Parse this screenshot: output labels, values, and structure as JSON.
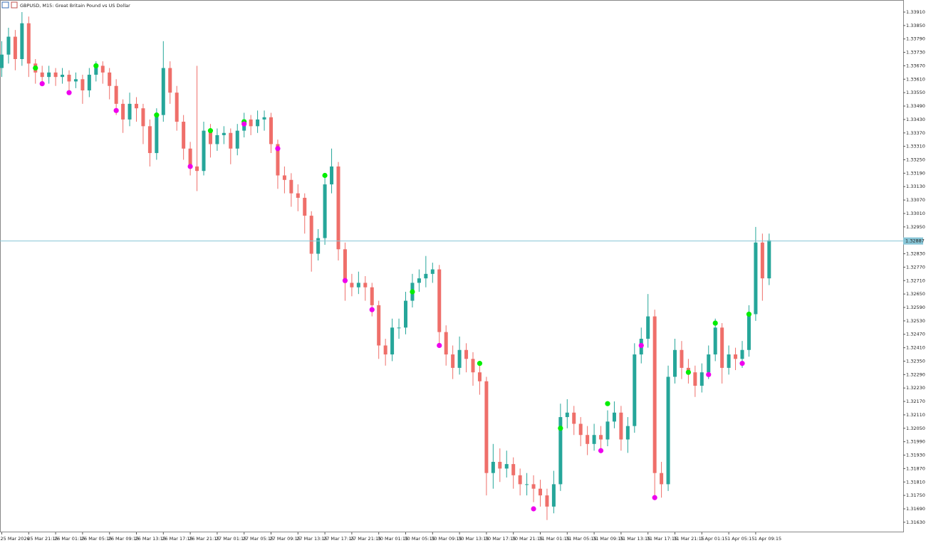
{
  "chart_data": {
    "type": "candlestick",
    "title": "GBPUSD, M15:  Great Britain Pound vs US Dollar",
    "up_color": "#26a69a",
    "down_color": "#ef6f6a",
    "grid": false,
    "ylim": [
      1.31585,
      1.33964
    ],
    "yticks": [
      {
        "value": 1.3391,
        "label": "1.33910"
      },
      {
        "value": 1.3385,
        "label": "1.33850"
      },
      {
        "value": 1.3379,
        "label": "1.33790"
      },
      {
        "value": 1.3373,
        "label": "1.33730"
      },
      {
        "value": 1.3367,
        "label": "1.33670"
      },
      {
        "value": 1.3361,
        "label": "1.33610"
      },
      {
        "value": 1.3355,
        "label": "1.33550"
      },
      {
        "value": 1.3349,
        "label": "1.33490"
      },
      {
        "value": 1.3343,
        "label": "1.33430"
      },
      {
        "value": 1.3337,
        "label": "1.33370"
      },
      {
        "value": 1.3331,
        "label": "1.33310"
      },
      {
        "value": 1.3325,
        "label": "1.33250"
      },
      {
        "value": 1.3319,
        "label": "1.33190"
      },
      {
        "value": 1.3313,
        "label": "1.33130"
      },
      {
        "value": 1.3307,
        "label": "1.33070"
      },
      {
        "value": 1.3301,
        "label": "1.33010"
      },
      {
        "value": 1.3295,
        "label": "1.32950"
      },
      {
        "value": 1.3283,
        "label": "1.32830"
      },
      {
        "value": 1.3277,
        "label": "1.32770"
      },
      {
        "value": 1.3271,
        "label": "1.32710"
      },
      {
        "value": 1.3265,
        "label": "1.32650"
      },
      {
        "value": 1.3259,
        "label": "1.32590"
      },
      {
        "value": 1.3253,
        "label": "1.32530"
      },
      {
        "value": 1.3247,
        "label": "1.32470"
      },
      {
        "value": 1.3241,
        "label": "1.32410"
      },
      {
        "value": 1.3235,
        "label": "1.32350"
      },
      {
        "value": 1.3229,
        "label": "1.32290"
      },
      {
        "value": 1.3223,
        "label": "1.32230"
      },
      {
        "value": 1.3217,
        "label": "1.32170"
      },
      {
        "value": 1.3211,
        "label": "1.32110"
      },
      {
        "value": 1.3205,
        "label": "1.32050"
      },
      {
        "value": 1.3199,
        "label": "1.31990"
      },
      {
        "value": 1.3193,
        "label": "1.31930"
      },
      {
        "value": 1.3187,
        "label": "1.31870"
      },
      {
        "value": 1.3181,
        "label": "1.31810"
      },
      {
        "value": 1.3175,
        "label": "1.31750"
      },
      {
        "value": 1.3169,
        "label": "1.31690"
      },
      {
        "value": 1.3163,
        "label": "1.31630"
      }
    ],
    "current_price": {
      "value": 1.32887,
      "label": "1.32887",
      "color": "#87c5d6"
    },
    "categories": [
      "25 Mar 2026",
      null,
      null,
      null,
      "25 Mar 21:15",
      null,
      null,
      null,
      "26 Mar 01:15",
      null,
      null,
      null,
      "26 Mar 05:15",
      null,
      null,
      null,
      "26 Mar 09:15",
      null,
      null,
      null,
      "26 Mar 13:15",
      null,
      null,
      null,
      "26 Mar 17:15",
      null,
      null,
      null,
      "26 Mar 21:15",
      null,
      null,
      null,
      "27 Mar 01:15",
      null,
      null,
      null,
      "27 Mar 05:15",
      null,
      null,
      null,
      "27 Mar 09:15",
      null,
      null,
      null,
      "27 Mar 13:15",
      null,
      null,
      null,
      "27 Mar 17:15",
      null,
      null,
      null,
      "27 Mar 21:15",
      null,
      null,
      null,
      "30 Mar 01:15",
      null,
      null,
      null,
      "30 Mar 05:15",
      null,
      null,
      null,
      "30 Mar 09:15",
      null,
      null,
      null,
      "30 Mar 13:15",
      null,
      null,
      null,
      "30 Mar 17:15",
      null,
      null,
      null,
      "30 Mar 21:15",
      null,
      null,
      null,
      "31 Mar 01:15",
      null,
      null,
      null,
      "31 Mar 05:15",
      null,
      null,
      null,
      "31 Mar 09:15",
      null,
      null,
      null,
      "31 Mar 13:15",
      null,
      null,
      null,
      "31 Mar 17:15",
      null,
      null,
      null,
      "31 Mar 21:15",
      null,
      null,
      null,
      "1 Apr 01:15",
      null,
      null,
      null,
      "1 Apr 05:15",
      null,
      null,
      null,
      "1 Apr 09:15",
      null,
      null
    ],
    "ohlc": [
      [
        1.3366,
        1.3378,
        1.3362,
        1.3372
      ],
      [
        1.3372,
        1.3384,
        1.3368,
        1.338
      ],
      [
        1.338,
        1.3383,
        1.3365,
        1.337
      ],
      [
        1.337,
        1.3391,
        1.3367,
        1.3386
      ],
      [
        1.3386,
        1.3389,
        1.3362,
        1.3368
      ],
      [
        1.3368,
        1.337,
        1.3359,
        1.3364
      ],
      [
        1.3364,
        1.3367,
        1.3358,
        1.3362
      ],
      [
        1.3362,
        1.3367,
        1.3359,
        1.3364
      ],
      [
        1.3364,
        1.3366,
        1.3358,
        1.3362
      ],
      [
        1.3362,
        1.3366,
        1.3359,
        1.3363
      ],
      [
        1.3363,
        1.3365,
        1.3355,
        1.336
      ],
      [
        1.336,
        1.3364,
        1.3357,
        1.3361
      ],
      [
        1.3361,
        1.3363,
        1.335,
        1.3356
      ],
      [
        1.3356,
        1.3366,
        1.3353,
        1.3363
      ],
      [
        1.3363,
        1.3369,
        1.336,
        1.3367
      ],
      [
        1.3367,
        1.3369,
        1.3359,
        1.3364
      ],
      [
        1.3364,
        1.3366,
        1.3352,
        1.3358
      ],
      [
        1.3358,
        1.3361,
        1.3345,
        1.335
      ],
      [
        1.335,
        1.3352,
        1.3337,
        1.3343
      ],
      [
        1.3343,
        1.3355,
        1.334,
        1.335
      ],
      [
        1.335,
        1.3353,
        1.3342,
        1.3348
      ],
      [
        1.3348,
        1.335,
        1.3332,
        1.334
      ],
      [
        1.334,
        1.3343,
        1.3322,
        1.3328
      ],
      [
        1.3328,
        1.3348,
        1.3325,
        1.3345
      ],
      [
        1.3345,
        1.3378,
        1.3342,
        1.3366
      ],
      [
        1.3366,
        1.3369,
        1.335,
        1.3355
      ],
      [
        1.3355,
        1.3358,
        1.3338,
        1.3342
      ],
      [
        1.3342,
        1.3345,
        1.3325,
        1.333
      ],
      [
        1.333,
        1.3333,
        1.3318,
        1.3322
      ],
      [
        1.3322,
        1.3367,
        1.3311,
        1.332
      ],
      [
        1.332,
        1.3342,
        1.3318,
        1.3338
      ],
      [
        1.3338,
        1.3341,
        1.3326,
        1.3332
      ],
      [
        1.3332,
        1.3339,
        1.3329,
        1.3336
      ],
      [
        1.3336,
        1.334,
        1.3332,
        1.3337
      ],
      [
        1.3337,
        1.3339,
        1.3323,
        1.333
      ],
      [
        1.333,
        1.3341,
        1.3327,
        1.3338
      ],
      [
        1.3338,
        1.3346,
        1.3335,
        1.3343
      ],
      [
        1.3343,
        1.3345,
        1.3336,
        1.334
      ],
      [
        1.334,
        1.3347,
        1.3337,
        1.3343
      ],
      [
        1.3343,
        1.3347,
        1.3338,
        1.3344
      ],
      [
        1.3344,
        1.3346,
        1.3328,
        1.3332
      ],
      [
        1.3332,
        1.3334,
        1.3312,
        1.3318
      ],
      [
        1.3318,
        1.3322,
        1.331,
        1.3316
      ],
      [
        1.3316,
        1.3319,
        1.3304,
        1.331
      ],
      [
        1.331,
        1.3314,
        1.3302,
        1.3308
      ],
      [
        1.3308,
        1.331,
        1.3292,
        1.33
      ],
      [
        1.33,
        1.3302,
        1.3275,
        1.3283
      ],
      [
        1.3283,
        1.3294,
        1.328,
        1.329
      ],
      [
        1.329,
        1.3318,
        1.3287,
        1.3314
      ],
      [
        1.3314,
        1.333,
        1.331,
        1.3322
      ],
      [
        1.3322,
        1.3324,
        1.328,
        1.3285
      ],
      [
        1.3285,
        1.3288,
        1.3262,
        1.327
      ],
      [
        1.327,
        1.3274,
        1.3264,
        1.3268
      ],
      [
        1.3268,
        1.3275,
        1.3265,
        1.327
      ],
      [
        1.327,
        1.3273,
        1.3262,
        1.3268
      ],
      [
        1.3268,
        1.327,
        1.3255,
        1.326
      ],
      [
        1.326,
        1.3262,
        1.3236,
        1.3242
      ],
      [
        1.3242,
        1.3245,
        1.3233,
        1.3238
      ],
      [
        1.3238,
        1.3254,
        1.3235,
        1.325
      ],
      [
        1.325,
        1.3254,
        1.3245,
        1.325
      ],
      [
        1.325,
        1.3266,
        1.3247,
        1.3262
      ],
      [
        1.3262,
        1.3274,
        1.3259,
        1.327
      ],
      [
        1.327,
        1.3276,
        1.3266,
        1.3272
      ],
      [
        1.3272,
        1.3282,
        1.3268,
        1.3274
      ],
      [
        1.3274,
        1.3279,
        1.327,
        1.3276
      ],
      [
        1.3276,
        1.3278,
        1.3243,
        1.3248
      ],
      [
        1.3248,
        1.3251,
        1.3233,
        1.3238
      ],
      [
        1.3238,
        1.3242,
        1.3227,
        1.3232
      ],
      [
        1.3232,
        1.3246,
        1.3229,
        1.324
      ],
      [
        1.324,
        1.3243,
        1.323,
        1.3236
      ],
      [
        1.3236,
        1.3239,
        1.3224,
        1.323
      ],
      [
        1.323,
        1.3233,
        1.322,
        1.3226
      ],
      [
        1.3226,
        1.3228,
        1.3175,
        1.3185
      ],
      [
        1.3185,
        1.3198,
        1.3178,
        1.319
      ],
      [
        1.319,
        1.3196,
        1.3181,
        1.3187
      ],
      [
        1.3187,
        1.3195,
        1.3183,
        1.3189
      ],
      [
        1.3189,
        1.3192,
        1.3178,
        1.3184
      ],
      [
        1.3184,
        1.3187,
        1.3175,
        1.318
      ],
      [
        1.318,
        1.3185,
        1.3175,
        1.318
      ],
      [
        1.318,
        1.3184,
        1.3172,
        1.3178
      ],
      [
        1.3178,
        1.3182,
        1.317,
        1.3175
      ],
      [
        1.3175,
        1.3178,
        1.3164,
        1.317
      ],
      [
        1.317,
        1.3186,
        1.3167,
        1.318
      ],
      [
        1.318,
        1.3216,
        1.3177,
        1.321
      ],
      [
        1.321,
        1.3218,
        1.3205,
        1.3212
      ],
      [
        1.3212,
        1.3215,
        1.3202,
        1.3207
      ],
      [
        1.3207,
        1.321,
        1.3197,
        1.3202
      ],
      [
        1.3202,
        1.3206,
        1.3193,
        1.3198
      ],
      [
        1.3198,
        1.3207,
        1.3195,
        1.3202
      ],
      [
        1.3202,
        1.3206,
        1.3195,
        1.32
      ],
      [
        1.32,
        1.3213,
        1.3197,
        1.3208
      ],
      [
        1.3208,
        1.3217,
        1.3205,
        1.3212
      ],
      [
        1.3212,
        1.3215,
        1.3195,
        1.32
      ],
      [
        1.32,
        1.321,
        1.3194,
        1.3206
      ],
      [
        1.3206,
        1.3243,
        1.3203,
        1.3238
      ],
      [
        1.3238,
        1.325,
        1.3234,
        1.3245
      ],
      [
        1.3245,
        1.3265,
        1.3241,
        1.3255
      ],
      [
        1.3255,
        1.3258,
        1.3175,
        1.3185
      ],
      [
        1.3185,
        1.319,
        1.3174,
        1.318
      ],
      [
        1.318,
        1.3233,
        1.3177,
        1.3228
      ],
      [
        1.3228,
        1.3245,
        1.3225,
        1.324
      ],
      [
        1.324,
        1.3244,
        1.3227,
        1.3232
      ],
      [
        1.3232,
        1.3236,
        1.3225,
        1.323
      ],
      [
        1.323,
        1.3233,
        1.3219,
        1.3224
      ],
      [
        1.3224,
        1.3234,
        1.3221,
        1.323
      ],
      [
        1.323,
        1.3242,
        1.3227,
        1.3238
      ],
      [
        1.3238,
        1.3254,
        1.3235,
        1.325
      ],
      [
        1.325,
        1.3252,
        1.3225,
        1.3232
      ],
      [
        1.3232,
        1.3242,
        1.3229,
        1.3238
      ],
      [
        1.3238,
        1.3241,
        1.3231,
        1.3236
      ],
      [
        1.3236,
        1.3244,
        1.3232,
        1.324
      ],
      [
        1.324,
        1.326,
        1.3237,
        1.3256
      ],
      [
        1.3256,
        1.3295,
        1.3253,
        1.3288
      ],
      [
        1.3288,
        1.3292,
        1.3262,
        1.3272
      ],
      [
        1.3272,
        1.3292,
        1.3269,
        1.3289
      ]
    ],
    "markers": [
      {
        "color": "#00ee00",
        "x": [
          5,
          14,
          23,
          31,
          36,
          48,
          61,
          71,
          83,
          90,
          102,
          106,
          111
        ],
        "values": [
          1.3366,
          1.3367,
          1.3345,
          1.3338,
          1.3342,
          1.3318,
          1.3266,
          1.3234,
          1.3205,
          1.3216,
          1.323,
          1.3252,
          1.3256
        ]
      },
      {
        "color": "#ee00ee",
        "x": [
          6,
          10,
          17,
          28,
          36,
          41,
          51,
          55,
          65,
          79,
          89,
          95,
          97,
          105,
          110
        ],
        "values": [
          1.3359,
          1.3355,
          1.3347,
          1.3322,
          1.3341,
          1.333,
          1.3271,
          1.3258,
          1.3242,
          1.3169,
          1.3195,
          1.3242,
          1.3174,
          1.3229,
          1.3234
        ]
      }
    ]
  }
}
